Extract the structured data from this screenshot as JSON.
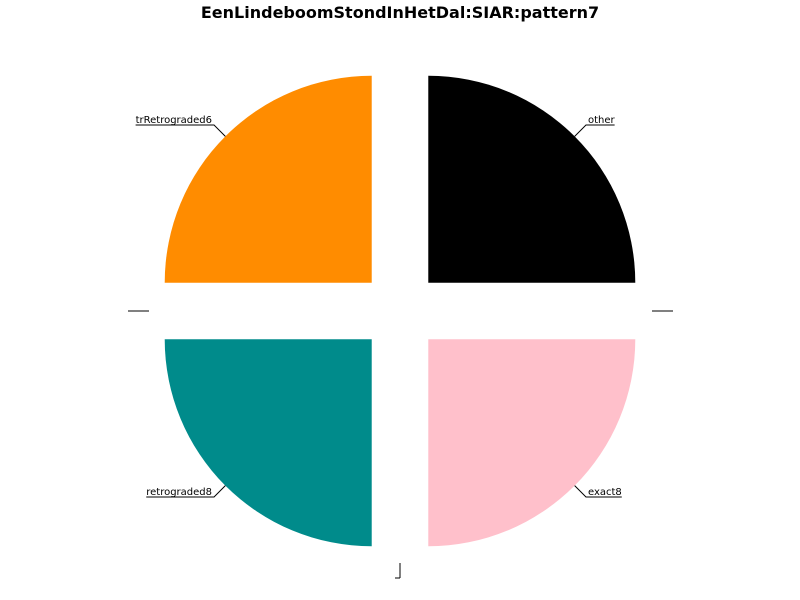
{
  "chart_data": {
    "type": "pie",
    "title": "EenLindeboomStondInHetDal:SIAR:pattern7",
    "slices": [
      {
        "label": "other",
        "value": 25,
        "color": "#000000"
      },
      {
        "label": "exact8",
        "value": 25,
        "color": "#ffc0cb"
      },
      {
        "label": "retrograded8",
        "value": 25,
        "color": "#008b8b"
      },
      {
        "label": "trRetrograded6",
        "value": 25,
        "color": "#ff8c00"
      }
    ],
    "legend": "none"
  }
}
